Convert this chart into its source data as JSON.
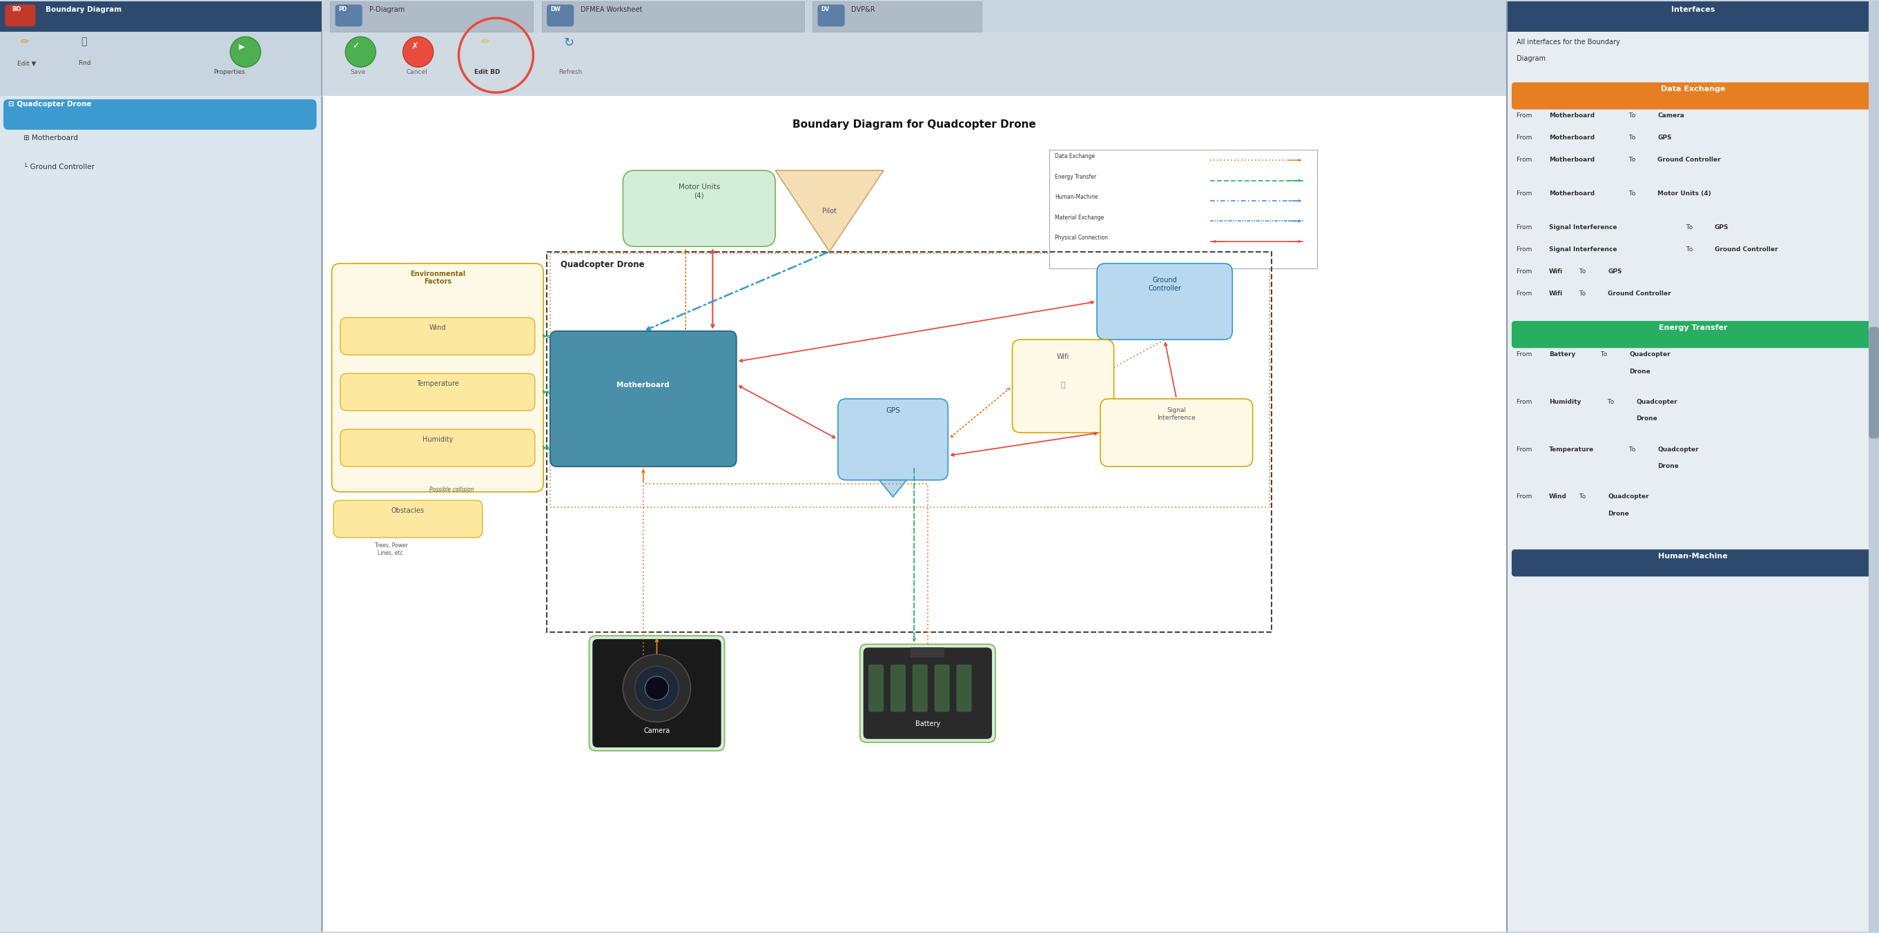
{
  "title": "Boundary Diagram for Quadcopter Drone",
  "tab_bd": "Boundary Diagram",
  "tab_pd": "P-Diagram",
  "tab_dw": "DFMEA Worksheet",
  "tab_dv": "DVP&R",
  "toolbar_left": [
    "Edit",
    "Find",
    "Properties"
  ],
  "toolbar_right": [
    "Save",
    "Cancel",
    "Edit BD",
    "Refresh"
  ],
  "tree_items": [
    "Quadcopter Drone",
    "Motherboard",
    "Ground Controller"
  ],
  "diagram_title": "Boundary Diagram for Quadcopter Drone",
  "quadcopter_label": "Quadcopter Drone",
  "env_factors_label": "Environmental\nFactors",
  "env_boxes": [
    "Wind",
    "Temperature",
    "Humidity"
  ],
  "motor_units_label": "Motor Units\n(4)",
  "pilot_label": "Pilot",
  "ground_ctrl_label": "Ground\nController",
  "motherboard_label": "Motherboard",
  "wifi_label": "Wifi",
  "gps_label": "GPS",
  "signal_label": "Signal\nInterference",
  "obstacles_label": "Obstacles",
  "possible_collision": "Possible collision",
  "trees_label": "Trees, Power\nLines, etc.",
  "camera_label": "Camera",
  "battery_label": "Battery",
  "legend_items": [
    {
      "label": "Data Exchange",
      "color": "#e67e22"
    },
    {
      "label": "Energy Transfer",
      "color": "#27ae60"
    },
    {
      "label": "Human-Machine",
      "color": "#4a90d9"
    },
    {
      "label": "Material Exchange",
      "color": "#4a90d9"
    },
    {
      "label": "Physical Connection",
      "color": "#e74c3c"
    }
  ],
  "interfaces_title": "Interfaces",
  "interfaces_sub": "All interfaces for the Boundary\nDiagram",
  "de_title": "Data Exchange",
  "de_color": "#e67e22",
  "de_items": [
    [
      "From ",
      "Motherboard",
      " To ",
      "Camera"
    ],
    [
      "From ",
      "Motherboard",
      " To ",
      "GPS"
    ],
    [
      "From ",
      "Motherboard",
      " To ",
      "Ground\nController"
    ],
    [
      "From ",
      "Motherboard",
      " To ",
      "Motor\nUnits (4)"
    ],
    [
      "From ",
      "Signal Interference",
      " To\n",
      "GPS"
    ],
    [
      "From ",
      "Signal Interference",
      " To\n",
      "Ground Controller"
    ],
    [
      "From ",
      "Wifi",
      " To ",
      "GPS"
    ],
    [
      "From ",
      "Wifi",
      " To ",
      "Ground Controller"
    ]
  ],
  "et_title": "Energy Transfer",
  "et_color": "#27ae60",
  "et_items": [
    [
      "From ",
      "Battery",
      " To ",
      "Quadcopter\nDrone"
    ],
    [
      "From ",
      "Humidity",
      " To ",
      "Quadcopter\nDrone"
    ],
    [
      "From ",
      "Temperature",
      " To ",
      "Quadcopter\nDrone"
    ],
    [
      "From ",
      "Wind",
      " To ",
      "Quadcopter\nDrone"
    ]
  ],
  "hm_title": "Human-Machine",
  "hm_color": "#2d4a6e",
  "col_bg": "#c8d4de",
  "tab_active_bg": "#2d4a6e",
  "tab_inactive_bg": "#b0bbc8",
  "toolbar_bg": "#d0dae3",
  "left_panel_bg": "#dce6ef",
  "canvas_bg": "#ffffff",
  "right_panel_bg": "#e8edf4",
  "right_header_bg": "#2d4a6e",
  "env_box_bg": "#fef8e7",
  "env_box_border": "#d4a800",
  "env_inner_bg": "#fde8a0",
  "motor_bg": "#d4edda",
  "motor_border": "#7ab648",
  "ground_bg": "#b8d8f0",
  "ground_border": "#3399cc",
  "motherboard_bg": "#4a8fa8",
  "wifi_bg": "#fef8e7",
  "gps_bg": "#b8d8f0",
  "signal_bg": "#fef8e7",
  "orange_arrow": "#e67e22",
  "green_arrow": "#27ae60",
  "red_arrow": "#e74c3c",
  "blue_arrow": "#3399cc"
}
